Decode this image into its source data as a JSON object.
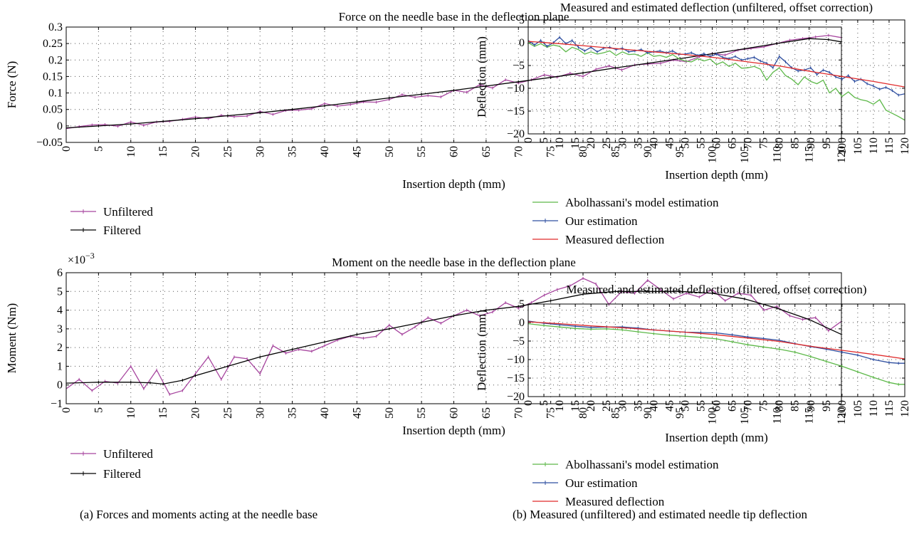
{
  "captions": {
    "a": "(a)  Forces and moments acting at the needle base",
    "b": "(b)  Measured (unfiltered) and estimated needle tip deflection"
  },
  "chart_data": [
    {
      "type": "line",
      "title": "Force on the needle base in the deflection plane",
      "xlabel": "Insertion depth (mm)",
      "ylabel": "Force (N)",
      "xlim": [
        0,
        120
      ],
      "ylim": [
        -0.05,
        0.3
      ],
      "xticks": [
        0,
        5,
        10,
        15,
        20,
        25,
        30,
        35,
        40,
        45,
        50,
        55,
        60,
        65,
        70,
        75,
        80,
        85,
        90,
        95,
        100,
        105,
        110,
        115,
        120
      ],
      "yticks": [
        -0.05,
        0,
        0.05,
        0.1,
        0.15,
        0.2,
        0.25,
        0.3
      ],
      "grid": true,
      "legend_position": "below",
      "series": [
        {
          "name": "Unfiltered",
          "color": "#a7469f",
          "marker": "|",
          "x": [
            0,
            2,
            4,
            6,
            8,
            10,
            12,
            14,
            16,
            18,
            20,
            22,
            24,
            26,
            28,
            30,
            32,
            34,
            36,
            38,
            40,
            42,
            44,
            46,
            48,
            50,
            52,
            54,
            56,
            58,
            60,
            62,
            64,
            66,
            68,
            70,
            72,
            74,
            76,
            78,
            80,
            82,
            84,
            86,
            88,
            90,
            92,
            94,
            96,
            98,
            100,
            102,
            104,
            106,
            108,
            110,
            112,
            114,
            116,
            118,
            120
          ],
          "y": [
            -0.008,
            -0.002,
            0.003,
            0.004,
            -0.001,
            0.012,
            0.002,
            0.012,
            0.014,
            0.02,
            0.027,
            0.022,
            0.032,
            0.028,
            0.03,
            0.044,
            0.035,
            0.047,
            0.048,
            0.052,
            0.068,
            0.06,
            0.065,
            0.073,
            0.072,
            0.08,
            0.095,
            0.087,
            0.092,
            0.088,
            0.108,
            0.102,
            0.125,
            0.115,
            0.14,
            0.13,
            0.14,
            0.155,
            0.148,
            0.16,
            0.15,
            0.172,
            0.182,
            0.17,
            0.185,
            0.188,
            0.19,
            0.2,
            0.195,
            0.21,
            0.22,
            0.215,
            0.23,
            0.235,
            0.24,
            0.25,
            0.26,
            0.265,
            0.27,
            0.275,
            0.268
          ]
        },
        {
          "name": "Filtered",
          "color": "#000000",
          "marker": "|",
          "x": [
            0,
            5,
            10,
            15,
            20,
            25,
            30,
            35,
            40,
            45,
            50,
            55,
            60,
            65,
            70,
            75,
            80,
            85,
            90,
            95,
            100,
            105,
            110,
            115,
            118,
            120
          ],
          "y": [
            -0.006,
            0.0,
            0.006,
            0.014,
            0.022,
            0.031,
            0.04,
            0.05,
            0.061,
            0.073,
            0.085,
            0.096,
            0.108,
            0.121,
            0.134,
            0.147,
            0.161,
            0.176,
            0.19,
            0.204,
            0.219,
            0.234,
            0.25,
            0.265,
            0.262,
            0.255
          ]
        }
      ]
    },
    {
      "type": "line",
      "title": "Moment on the needle base in the deflection plane",
      "multiplier": "×10",
      "multiplier_exp": "−3",
      "xlabel": "Insertion depth (mm)",
      "ylabel": "Moment (Nm)",
      "xlim": [
        0,
        120
      ],
      "ylim": [
        -1,
        6
      ],
      "xticks": [
        0,
        5,
        10,
        15,
        20,
        25,
        30,
        35,
        40,
        45,
        50,
        55,
        60,
        65,
        70,
        75,
        80,
        85,
        90,
        95,
        100,
        105,
        110,
        115,
        120
      ],
      "yticks": [
        -1,
        0,
        1,
        2,
        3,
        4,
        5,
        6
      ],
      "grid": true,
      "legend_position": "below",
      "series": [
        {
          "name": "Unfiltered",
          "color": "#a7469f",
          "marker": "|",
          "x": [
            0,
            2,
            4,
            6,
            8,
            10,
            12,
            14,
            16,
            18,
            20,
            22,
            24,
            26,
            28,
            30,
            32,
            34,
            36,
            38,
            40,
            42,
            44,
            46,
            48,
            50,
            52,
            54,
            56,
            58,
            60,
            62,
            64,
            66,
            68,
            70,
            72,
            74,
            76,
            78,
            80,
            82,
            84,
            86,
            88,
            90,
            92,
            94,
            96,
            98,
            100,
            102,
            104,
            106,
            108,
            110,
            112,
            114,
            116,
            118,
            120
          ],
          "y": [
            -0.2,
            0.3,
            -0.3,
            0.2,
            0.1,
            1.0,
            -0.2,
            0.8,
            -0.5,
            -0.3,
            0.6,
            1.5,
            0.3,
            1.5,
            1.4,
            0.6,
            2.1,
            1.7,
            1.9,
            1.8,
            2.1,
            2.4,
            2.6,
            2.5,
            2.6,
            3.2,
            2.7,
            3.1,
            3.6,
            3.3,
            3.7,
            4.0,
            3.7,
            3.9,
            4.4,
            4.1,
            4.4,
            4.8,
            5.1,
            5.3,
            5.7,
            5.4,
            4.3,
            5.0,
            4.9,
            5.6,
            5.1,
            4.6,
            4.9,
            4.7,
            5.1,
            4.5,
            4.9,
            4.8,
            4.0,
            4.2,
            3.7,
            3.5,
            3.6,
            2.9,
            3.4
          ]
        },
        {
          "name": "Filtered",
          "color": "#000000",
          "marker": "|",
          "x": [
            0,
            5,
            10,
            13,
            15,
            18,
            20,
            25,
            30,
            35,
            40,
            45,
            50,
            55,
            60,
            65,
            70,
            75,
            80,
            85,
            90,
            95,
            100,
            105,
            110,
            115,
            120
          ],
          "y": [
            0.1,
            0.15,
            0.15,
            0.12,
            0.05,
            0.25,
            0.5,
            1.0,
            1.5,
            1.9,
            2.3,
            2.7,
            3.0,
            3.35,
            3.7,
            4.0,
            4.2,
            4.5,
            4.85,
            5.0,
            5.0,
            5.0,
            4.9,
            4.6,
            4.1,
            3.5,
            2.7
          ]
        }
      ]
    },
    {
      "type": "line",
      "title": "Measured and estimated deflection (unfiltered, offset correction)",
      "xlabel": "Insertion depth (mm)",
      "ylabel": "Deflection (mm)",
      "xlim": [
        0,
        120
      ],
      "ylim": [
        -20,
        5
      ],
      "xticks": [
        0,
        5,
        10,
        15,
        20,
        25,
        30,
        35,
        40,
        45,
        50,
        55,
        60,
        65,
        70,
        75,
        80,
        85,
        90,
        95,
        100,
        105,
        110,
        115,
        120
      ],
      "yticks": [
        -20,
        -15,
        -10,
        -5,
        0,
        5
      ],
      "grid": true,
      "legend_position": "below",
      "series": [
        {
          "name": "Abolhassani's model estimation",
          "color": "#5db849",
          "x": [
            0,
            2,
            4,
            6,
            8,
            10,
            12,
            14,
            16,
            18,
            20,
            22,
            24,
            26,
            28,
            30,
            32,
            34,
            36,
            38,
            40,
            42,
            44,
            46,
            48,
            50,
            52,
            54,
            56,
            58,
            60,
            62,
            64,
            66,
            68,
            70,
            72,
            74,
            76,
            78,
            80,
            82,
            84,
            86,
            88,
            90,
            92,
            94,
            96,
            98,
            100,
            102,
            104,
            106,
            108,
            110,
            112,
            114,
            116,
            118,
            120
          ],
          "y": [
            0,
            -0.8,
            -0.2,
            -1.0,
            -0.5,
            -0.8,
            -2.0,
            -1.0,
            -1.5,
            -2.5,
            -2.0,
            -2.5,
            -2.2,
            -1.8,
            -2.8,
            -2.0,
            -2.6,
            -2.5,
            -3.0,
            -2.2,
            -3.0,
            -2.8,
            -3.2,
            -2.6,
            -3.5,
            -4.0,
            -4.2,
            -3.5,
            -4.0,
            -3.6,
            -4.8,
            -4.2,
            -5.2,
            -4.5,
            -5.6,
            -5.5,
            -5.2,
            -5.8,
            -8.2,
            -6.5,
            -5.5,
            -7.2,
            -8.0,
            -9.2,
            -7.5,
            -8.5,
            -9.0,
            -8.2,
            -11.0,
            -10.0,
            -11.8,
            -10.8,
            -12.0,
            -12.5,
            -12.8,
            -13.5,
            -12.5,
            -14.8,
            -15.5,
            -16.2,
            -17.0
          ]
        },
        {
          "name": "Our estimation",
          "color": "#2f4fa0",
          "marker": "|",
          "x": [
            0,
            2,
            4,
            6,
            8,
            10,
            12,
            14,
            16,
            18,
            20,
            22,
            24,
            26,
            28,
            30,
            32,
            34,
            36,
            38,
            40,
            42,
            44,
            46,
            48,
            50,
            52,
            54,
            56,
            58,
            60,
            62,
            64,
            66,
            68,
            70,
            72,
            74,
            76,
            78,
            80,
            82,
            84,
            86,
            88,
            90,
            92,
            94,
            96,
            98,
            100,
            102,
            104,
            106,
            108,
            110,
            112,
            114,
            116,
            118,
            120
          ],
          "y": [
            0.5,
            -0.5,
            0.5,
            -0.8,
            0.0,
            1.2,
            -0.2,
            0.5,
            -1.0,
            -1.8,
            -1.0,
            -2.0,
            -1.2,
            -1.0,
            -1.5,
            -1.2,
            -2.0,
            -1.8,
            -1.5,
            -2.2,
            -2.0,
            -1.8,
            -2.2,
            -1.8,
            -2.6,
            -2.5,
            -2.2,
            -2.8,
            -2.4,
            -3.0,
            -2.5,
            -3.2,
            -3.5,
            -3.0,
            -3.8,
            -3.5,
            -3.2,
            -4.0,
            -4.5,
            -5.5,
            -3.0,
            -4.2,
            -5.5,
            -6.2,
            -6.0,
            -5.5,
            -7.0,
            -6.0,
            -6.5,
            -7.5,
            -8.0,
            -7.2,
            -8.5,
            -8.0,
            -9.0,
            -9.5,
            -10.2,
            -9.8,
            -10.5,
            -11.5,
            -11.2
          ]
        },
        {
          "name": "Measured deflection",
          "color": "#e02a2a",
          "x": [
            0,
            10,
            20,
            30,
            40,
            50,
            60,
            70,
            80,
            90,
            100,
            110,
            120
          ],
          "y": [
            0.3,
            -0.2,
            -0.8,
            -1.4,
            -2.0,
            -2.6,
            -3.3,
            -4.2,
            -5.1,
            -6.3,
            -7.4,
            -8.5,
            -9.7
          ]
        }
      ]
    },
    {
      "type": "line",
      "title": "Measured and estimated deflection (filtered, offset correction)",
      "xlabel": "Insertion depth (mm)",
      "ylabel": "Deflection (mm)",
      "xlim": [
        0,
        120
      ],
      "ylim": [
        -20,
        5
      ],
      "xticks": [
        0,
        5,
        10,
        15,
        20,
        25,
        30,
        35,
        40,
        45,
        50,
        55,
        60,
        65,
        70,
        75,
        80,
        85,
        90,
        95,
        100,
        105,
        110,
        115,
        120
      ],
      "yticks": [
        -20,
        -15,
        -10,
        -5,
        0,
        5
      ],
      "grid": true,
      "legend_position": "below",
      "series": [
        {
          "name": "Abolhassani's model estimation",
          "color": "#5db849",
          "marker": "|",
          "x": [
            0,
            5,
            10,
            15,
            20,
            25,
            30,
            35,
            40,
            45,
            50,
            55,
            60,
            65,
            70,
            75,
            80,
            85,
            90,
            95,
            100,
            105,
            110,
            115,
            118,
            120
          ],
          "y": [
            -0.3,
            -0.8,
            -1.2,
            -1.6,
            -1.8,
            -1.7,
            -2.0,
            -2.5,
            -3.0,
            -3.4,
            -3.7,
            -4.0,
            -4.4,
            -5.2,
            -6.0,
            -6.6,
            -7.2,
            -8.0,
            -9.2,
            -10.5,
            -11.8,
            -13.3,
            -14.8,
            -16.2,
            -16.7,
            -16.7
          ]
        },
        {
          "name": "Our estimation",
          "color": "#2f4fa0",
          "marker": "|",
          "x": [
            0,
            5,
            10,
            15,
            20,
            25,
            30,
            35,
            40,
            45,
            50,
            55,
            60,
            65,
            70,
            75,
            80,
            85,
            90,
            95,
            100,
            105,
            110,
            115,
            118,
            120
          ],
          "y": [
            0.4,
            -0.2,
            -0.6,
            -1.0,
            -1.3,
            -1.2,
            -1.2,
            -1.5,
            -2.0,
            -2.3,
            -2.6,
            -2.7,
            -2.8,
            -3.3,
            -3.9,
            -4.3,
            -4.8,
            -5.7,
            -6.5,
            -7.2,
            -8.0,
            -8.8,
            -10.0,
            -10.8,
            -11.0,
            -11.0
          ]
        },
        {
          "name": "Measured deflection",
          "color": "#e02a2a",
          "x": [
            0,
            10,
            20,
            30,
            40,
            50,
            60,
            70,
            80,
            90,
            100,
            110,
            120
          ],
          "y": [
            0.2,
            -0.3,
            -0.9,
            -1.4,
            -2.0,
            -2.6,
            -3.3,
            -4.2,
            -5.1,
            -6.4,
            -7.5,
            -8.6,
            -9.8
          ]
        }
      ]
    }
  ]
}
